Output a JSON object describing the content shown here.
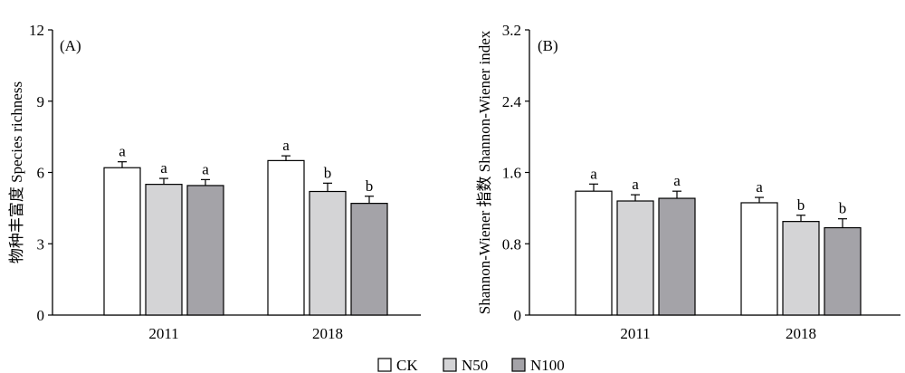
{
  "chart_data": [
    {
      "type": "bar",
      "panel_label": "(A)",
      "ylabel": "物种丰富度 Species richness",
      "categories": [
        "2011",
        "2018"
      ],
      "ylim": [
        0,
        12
      ],
      "yticks": [
        "0",
        "3",
        "6",
        "9",
        "12"
      ],
      "series": [
        {
          "name": "CK",
          "values": [
            6.2,
            6.5
          ],
          "errors": [
            0.25,
            0.2
          ],
          "letters": [
            "a",
            "a"
          ]
        },
        {
          "name": "N50",
          "values": [
            5.5,
            5.2
          ],
          "errors": [
            0.25,
            0.35
          ],
          "letters": [
            "a",
            "b"
          ]
        },
        {
          "name": "N100",
          "values": [
            5.45,
            4.7
          ],
          "errors": [
            0.25,
            0.3
          ],
          "letters": [
            "a",
            "b"
          ]
        }
      ]
    },
    {
      "type": "bar",
      "panel_label": "(B)",
      "ylabel": "Shannon-Wiener 指数 Shannon-Wiener index",
      "categories": [
        "2011",
        "2018"
      ],
      "ylim": [
        0,
        3.2
      ],
      "yticks": [
        "0",
        "0.8",
        "1.6",
        "2.4",
        "3.2"
      ],
      "series": [
        {
          "name": "CK",
          "values": [
            1.39,
            1.26
          ],
          "errors": [
            0.08,
            0.06
          ],
          "letters": [
            "a",
            "a"
          ]
        },
        {
          "name": "N50",
          "values": [
            1.28,
            1.05
          ],
          "errors": [
            0.07,
            0.07
          ],
          "letters": [
            "a",
            "b"
          ]
        },
        {
          "name": "N100",
          "values": [
            1.31,
            0.98
          ],
          "errors": [
            0.08,
            0.1
          ],
          "letters": [
            "a",
            "b"
          ]
        }
      ]
    }
  ],
  "legend": {
    "items": [
      {
        "label": "CK",
        "color": "#ffffff"
      },
      {
        "label": "N50",
        "color": "#d4d4d6"
      },
      {
        "label": "N100",
        "color": "#a4a3a8"
      }
    ]
  },
  "colors": {
    "CK": "#ffffff",
    "N50": "#d4d4d6",
    "N100": "#a4a3a8"
  }
}
